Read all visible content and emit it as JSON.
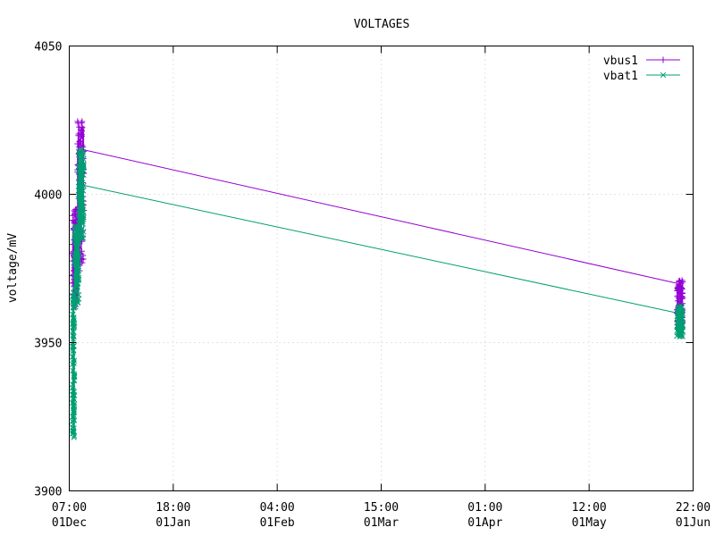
{
  "chart_data": {
    "type": "line",
    "title": "VOLTAGES",
    "xlabel": "",
    "ylabel": "voltage/mV",
    "ylim": [
      3900,
      4050
    ],
    "y_ticks": [
      3900,
      3950,
      4000,
      4050
    ],
    "x_ticks": [
      {
        "time": "07:00",
        "date": "01Dec"
      },
      {
        "time": "18:00",
        "date": "01Jan"
      },
      {
        "time": "04:00",
        "date": "01Feb"
      },
      {
        "time": "15:00",
        "date": "01Mar"
      },
      {
        "time": "01:00",
        "date": "01Apr"
      },
      {
        "time": "12:00",
        "date": "01May"
      },
      {
        "time": "22:00",
        "date": "01Jun"
      }
    ],
    "grid": true,
    "legend_position": "top-right",
    "series": [
      {
        "name": "vbus1",
        "color": "#9400d3",
        "marker": "plus",
        "clusters": [
          {
            "x_range": [
              1.0,
              2.5
            ],
            "y_range": [
              3962,
              3995
            ]
          },
          {
            "x_range": [
              2.5,
              4.5
            ],
            "y_range": [
              3974,
              4025
            ]
          },
          {
            "x_range": [
              187.0,
              188.8
            ],
            "y_range": [
              3955,
              3971
            ]
          }
        ],
        "line": [
          [
            4.5,
            4015
          ],
          [
            187.0,
            3970
          ]
        ]
      },
      {
        "name": "vbat1",
        "color": "#009e73",
        "marker": "x",
        "clusters": [
          {
            "x_range": [
              1.0,
              1.6
            ],
            "y_range": [
              3918,
              3970
            ]
          },
          {
            "x_range": [
              1.6,
              3.0
            ],
            "y_range": [
              3962,
              3990
            ]
          },
          {
            "x_range": [
              2.8,
              4.5
            ],
            "y_range": [
              3985,
              4016
            ]
          },
          {
            "x_range": [
              187.0,
              188.8
            ],
            "y_range": [
              3952,
              3963
            ]
          }
        ],
        "line": [
          [
            4.5,
            4003
          ],
          [
            187.0,
            3960
          ]
        ]
      }
    ]
  }
}
